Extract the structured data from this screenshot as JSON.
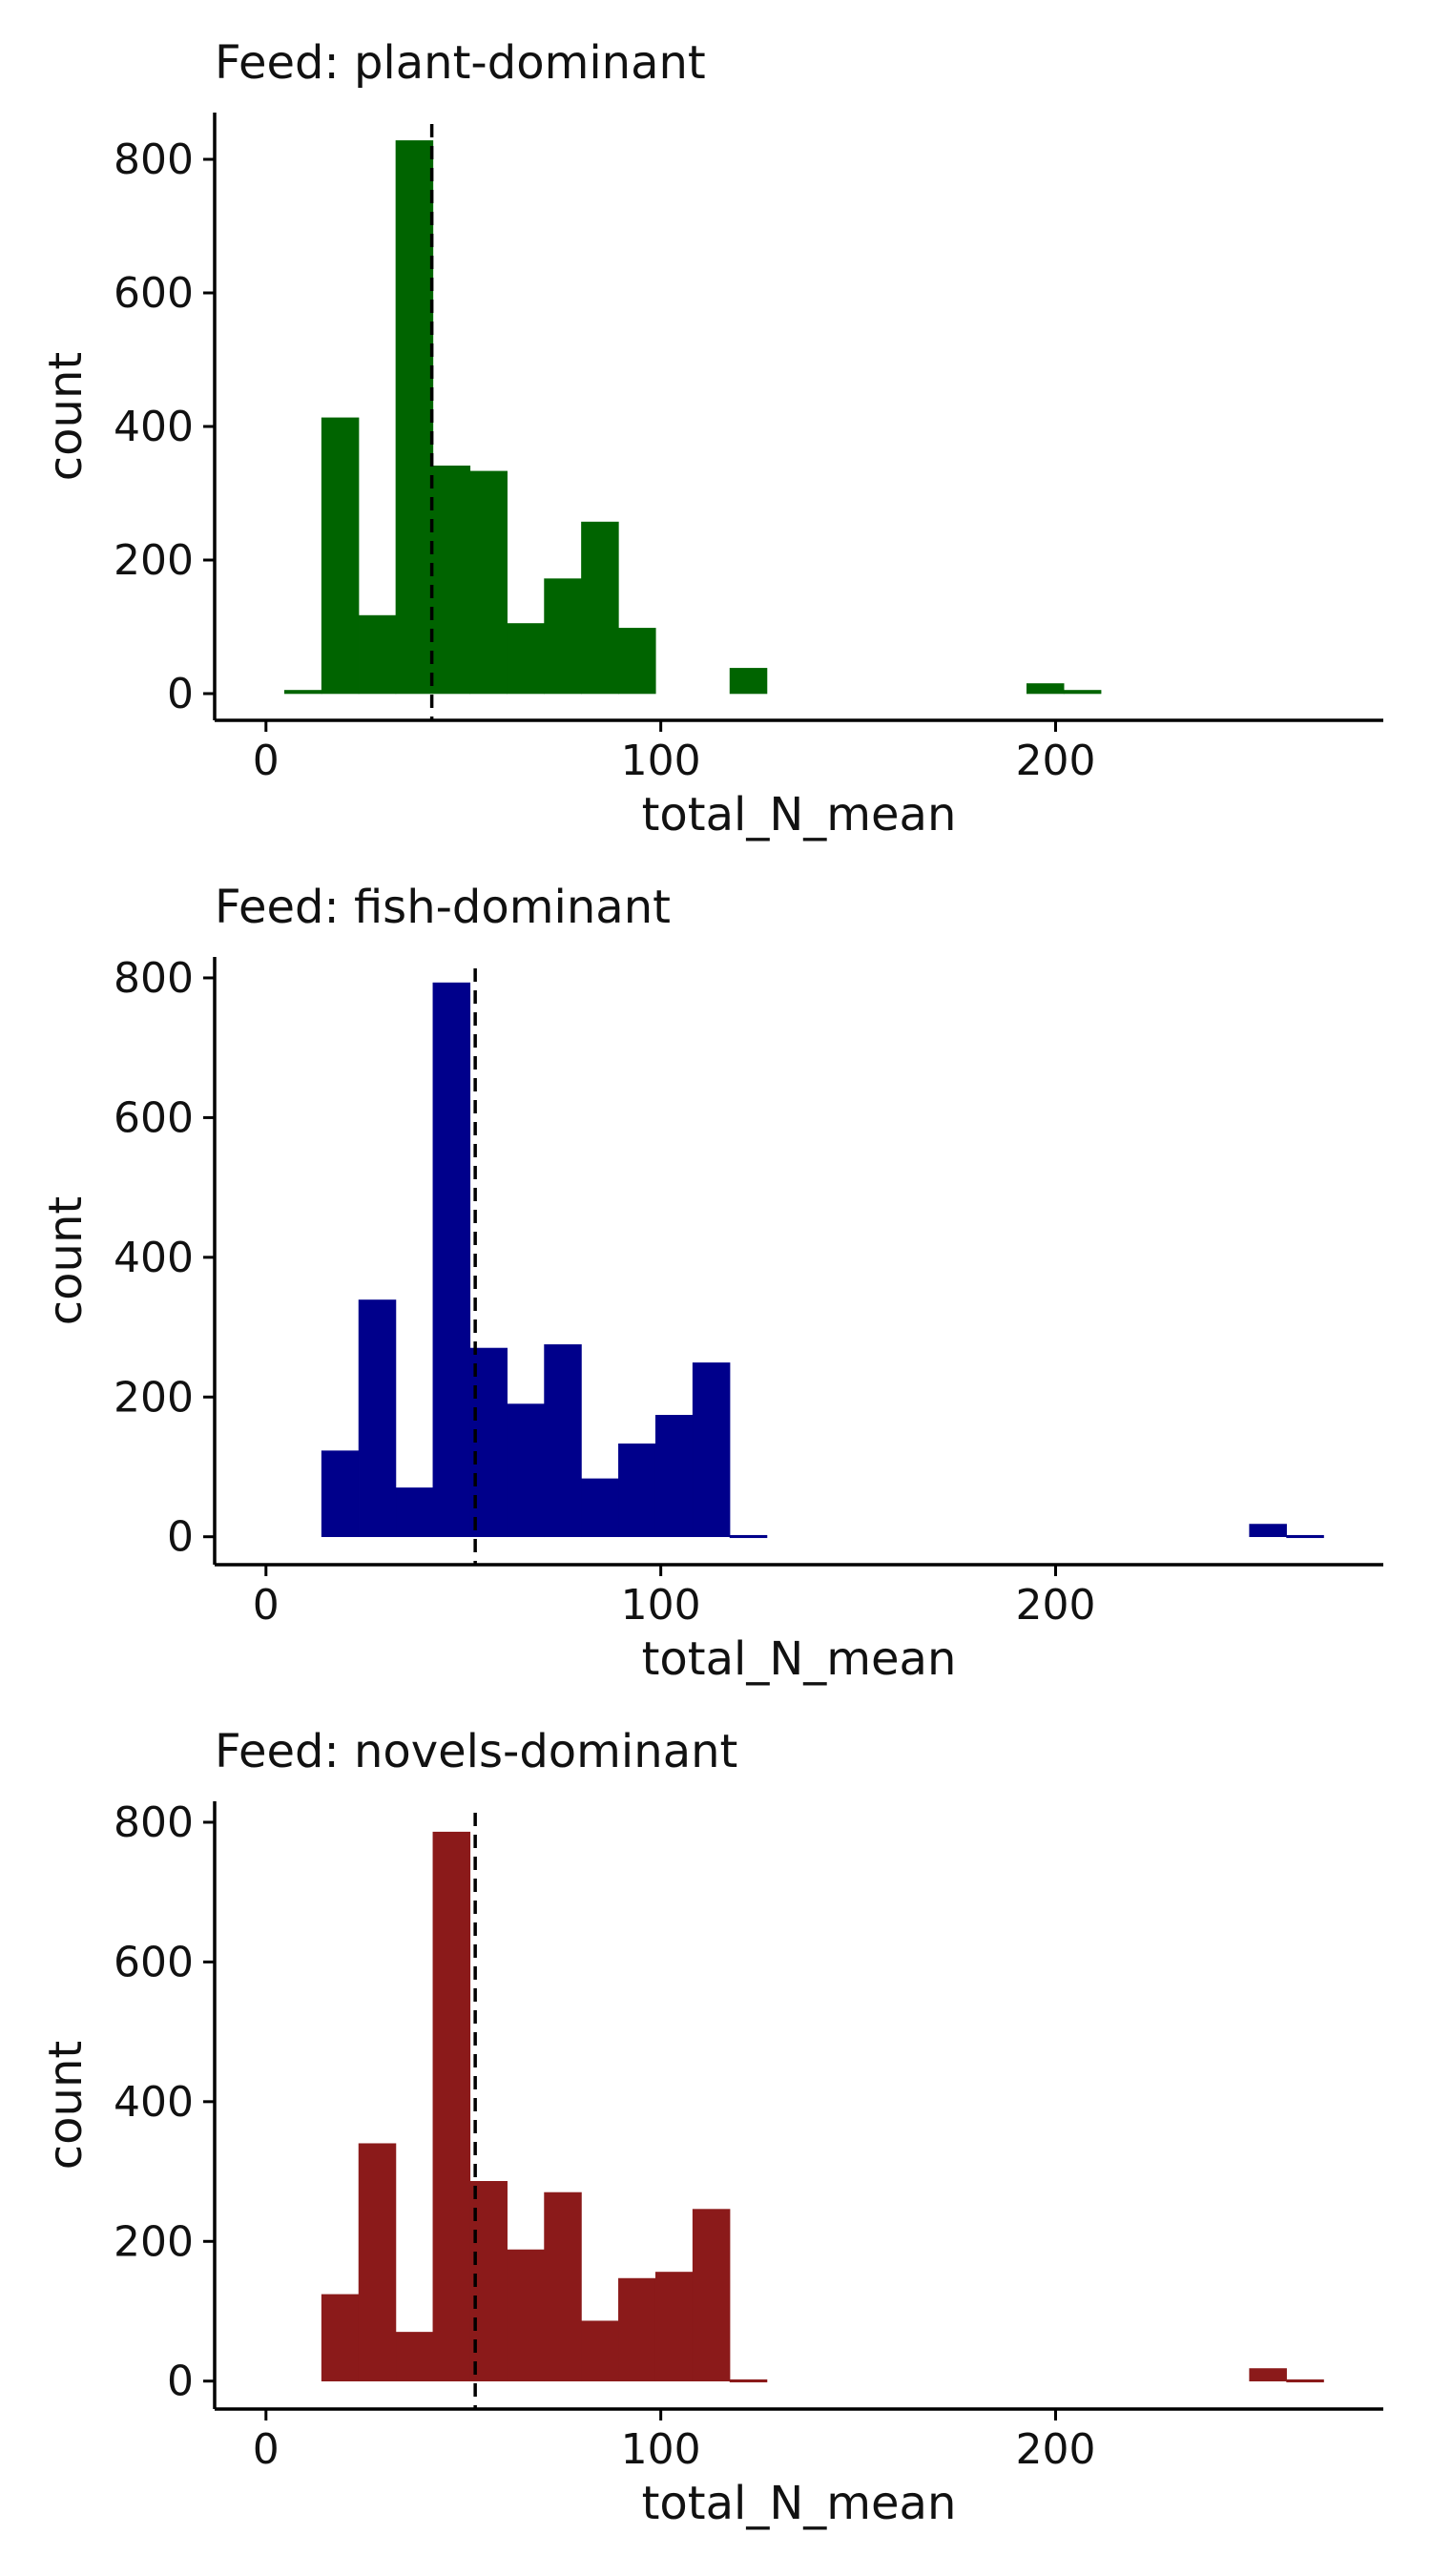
{
  "chart_data": [
    {
      "type": "bar",
      "title": "Feed: plant-dominant",
      "xlabel": "total_N_mean",
      "ylabel": "count",
      "color": "#006400",
      "xlim": [
        -13,
        283
      ],
      "ylim": [
        -40,
        870
      ],
      "xticks": [
        0,
        100,
        200
      ],
      "yticks": [
        0,
        200,
        400,
        600,
        800
      ],
      "bin_width": 9.4,
      "bin_starts": [
        4.7,
        14.1,
        23.5,
        32.9,
        42.3,
        51.7,
        61.1,
        70.5,
        79.9,
        89.3,
        98.7,
        108.1,
        117.5,
        126.9,
        136.3,
        145.7,
        155.1,
        164.5,
        173.9,
        183.3,
        192.7,
        202.1
      ],
      "values": [
        5,
        413,
        117,
        828,
        341,
        333,
        105,
        172,
        257,
        98,
        0,
        0,
        38,
        0,
        0,
        0,
        0,
        0,
        0,
        0,
        15,
        5
      ],
      "mean": 42
    },
    {
      "type": "bar",
      "title": "Feed: fish-dominant",
      "xlabel": "total_N_mean",
      "ylabel": "count",
      "color": "#00008B",
      "xlim": [
        -13,
        283
      ],
      "ylim": [
        -40,
        830
      ],
      "xticks": [
        0,
        100,
        200
      ],
      "yticks": [
        0,
        200,
        400,
        600,
        800
      ],
      "bin_width": 9.4,
      "bin_starts": [
        14.1,
        23.5,
        32.9,
        42.3,
        51.7,
        61.1,
        70.5,
        79.9,
        89.3,
        98.7,
        108.1,
        117.5,
        126.9,
        136.3,
        145.7,
        155.1,
        164.5,
        173.9,
        183.3,
        192.7,
        202.1,
        211.5,
        220.9,
        230.3,
        239.7,
        249.1,
        258.5
      ],
      "values": [
        123,
        339,
        70,
        793,
        270,
        190,
        275,
        83,
        133,
        174,
        249,
        2,
        0,
        0,
        0,
        0,
        0,
        0,
        0,
        0,
        0,
        0,
        0,
        0,
        0,
        18,
        2
      ],
      "mean": 53
    },
    {
      "type": "bar",
      "title": "Feed: novels-dominant",
      "xlabel": "total_N_mean",
      "ylabel": "count",
      "color": "#8B1A1A",
      "xlim": [
        -13,
        283
      ],
      "ylim": [
        -40,
        830
      ],
      "xticks": [
        0,
        100,
        200
      ],
      "yticks": [
        0,
        200,
        400,
        600,
        800
      ],
      "bin_width": 9.4,
      "bin_starts": [
        14.1,
        23.5,
        32.9,
        42.3,
        51.7,
        61.1,
        70.5,
        79.9,
        89.3,
        98.7,
        108.1,
        117.5,
        126.9,
        136.3,
        145.7,
        155.1,
        164.5,
        173.9,
        183.3,
        192.7,
        202.1,
        211.5,
        220.9,
        230.3,
        239.7,
        249.1,
        258.5
      ],
      "values": [
        124,
        340,
        70,
        786,
        286,
        188,
        270,
        86,
        147,
        156,
        246,
        2,
        0,
        0,
        0,
        0,
        0,
        0,
        0,
        0,
        0,
        0,
        0,
        0,
        0,
        18,
        2
      ],
      "mean": 53
    }
  ]
}
